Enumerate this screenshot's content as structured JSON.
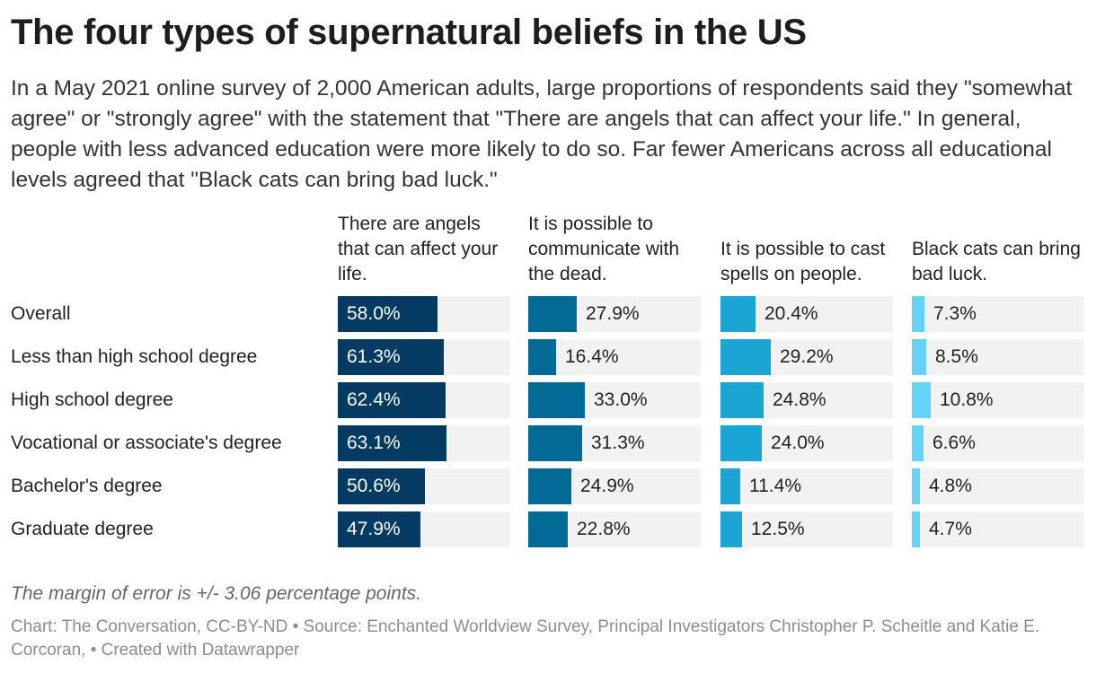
{
  "title": "The four types of supernatural beliefs in the US",
  "description": "In a May 2021 online survey of 2,000 American adults, large proportions of respondents said they \"somewhat agree\" or \"strongly agree\" with the statement that \"There are angels that can affect your life.\" In general, people with less advanced education were more likely to do so. Far fewer Americans across all educational levels agreed that \"Black cats can bring bad luck.\"",
  "note": "The margin of error is +/- 3.06 percentage points.",
  "credits": "Chart: The Conversation, CC-BY-ND • Source: Enchanted Worldview Survey, Principal Investigators Christopher P. Scheitle and Katie E. Corcoran, • Created with Datawrapper",
  "colors": {
    "angels": "#033b63",
    "dead": "#036996",
    "spells": "#1ba5d2",
    "cats": "#65d3f7",
    "track": "#f2f2f2"
  },
  "chart_data": {
    "type": "bar",
    "orientation": "horizontal",
    "scale_max": 100,
    "unit": "%",
    "categories": [
      "Overall",
      "Less than high school degree",
      "High school degree",
      "Vocational or associate's degree",
      "Bachelor's degree",
      "Graduate degree"
    ],
    "series": [
      {
        "name": "There are angels that can affect your life.",
        "color": "#033b63",
        "values": [
          58.0,
          61.3,
          62.4,
          63.1,
          50.6,
          47.9
        ],
        "labels": [
          "58.0%",
          "61.3%",
          "62.4%",
          "63.1%",
          "50.6%",
          "47.9%"
        ]
      },
      {
        "name": "It is possible to communicate with the dead.",
        "color": "#036996",
        "values": [
          27.9,
          16.4,
          33.0,
          31.3,
          24.9,
          22.8
        ],
        "labels": [
          "27.9%",
          "16.4%",
          "33.0%",
          "31.3%",
          "24.9%",
          "22.8%"
        ]
      },
      {
        "name": "It is possible to cast spells on people.",
        "color": "#1ba5d2",
        "values": [
          20.4,
          29.2,
          24.8,
          24.0,
          11.4,
          12.5
        ],
        "labels": [
          "20.4%",
          "29.2%",
          "24.8%",
          "24.0%",
          "11.4%",
          "12.5%"
        ]
      },
      {
        "name": "Black cats can bring bad luck.",
        "color": "#65d3f7",
        "values": [
          7.3,
          8.5,
          10.8,
          6.6,
          4.8,
          4.7
        ],
        "labels": [
          "7.3%",
          "8.5%",
          "10.8%",
          "6.6%",
          "4.8%",
          "4.7%"
        ]
      }
    ]
  }
}
